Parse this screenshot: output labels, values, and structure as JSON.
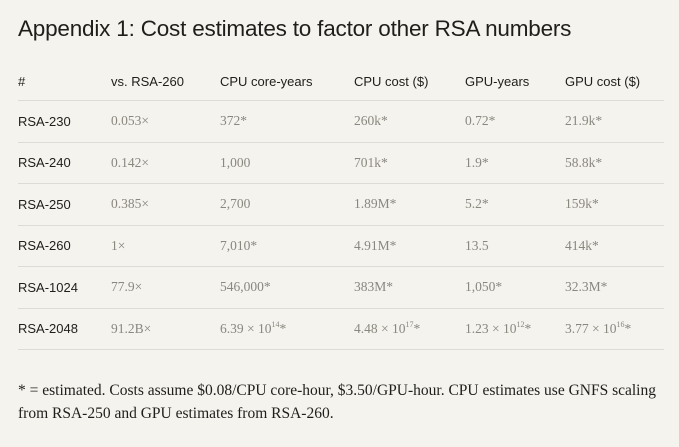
{
  "title": "Appendix 1: Cost estimates to factor other RSA numbers",
  "table": {
    "headers": [
      "#",
      "vs. RSA-260",
      "CPU core-years",
      "CPU cost ($)",
      "GPU-years",
      "GPU cost ($)"
    ],
    "rows": [
      {
        "name": "RSA-230",
        "cells": [
          {
            "text": "0.053×"
          },
          {
            "text": "372*"
          },
          {
            "text": "260k*"
          },
          {
            "text": "0.72*"
          },
          {
            "text": "21.9k*"
          }
        ]
      },
      {
        "name": "RSA-240",
        "cells": [
          {
            "text": "0.142×"
          },
          {
            "text": "1,000"
          },
          {
            "text": "701k*"
          },
          {
            "text": "1.9*"
          },
          {
            "text": "58.8k*"
          }
        ]
      },
      {
        "name": "RSA-250",
        "cells": [
          {
            "text": "0.385×"
          },
          {
            "text": "2,700"
          },
          {
            "text": "1.89M*"
          },
          {
            "text": "5.2*"
          },
          {
            "text": "159k*"
          }
        ]
      },
      {
        "name": "RSA-260",
        "cells": [
          {
            "text": "1×"
          },
          {
            "text": "7,010*"
          },
          {
            "text": "4.91M*"
          },
          {
            "text": "13.5"
          },
          {
            "text": "414k*"
          }
        ]
      },
      {
        "name": "RSA-1024",
        "cells": [
          {
            "text": "77.9×"
          },
          {
            "text": "546,000*"
          },
          {
            "text": "383M*"
          },
          {
            "text": "1,050*"
          },
          {
            "text": "32.3M*"
          }
        ]
      },
      {
        "name": "RSA-2048",
        "cells": [
          {
            "text": "91.2B×"
          },
          {
            "base": "6.39 × 10",
            "exp": "14",
            "suffix": "*"
          },
          {
            "base": "4.48 × 10",
            "exp": "17",
            "suffix": "*"
          },
          {
            "base": "1.23 × 10",
            "exp": "12",
            "suffix": "*"
          },
          {
            "base": "3.77 × 10",
            "exp": "16",
            "suffix": "*"
          }
        ]
      }
    ]
  },
  "footnote": "* = estimated. Costs assume $0.08/CPU core-hour, $3.50/GPU-hour. CPU estimates use GNFS scaling from RSA-250 and GPU estimates from RSA-260."
}
